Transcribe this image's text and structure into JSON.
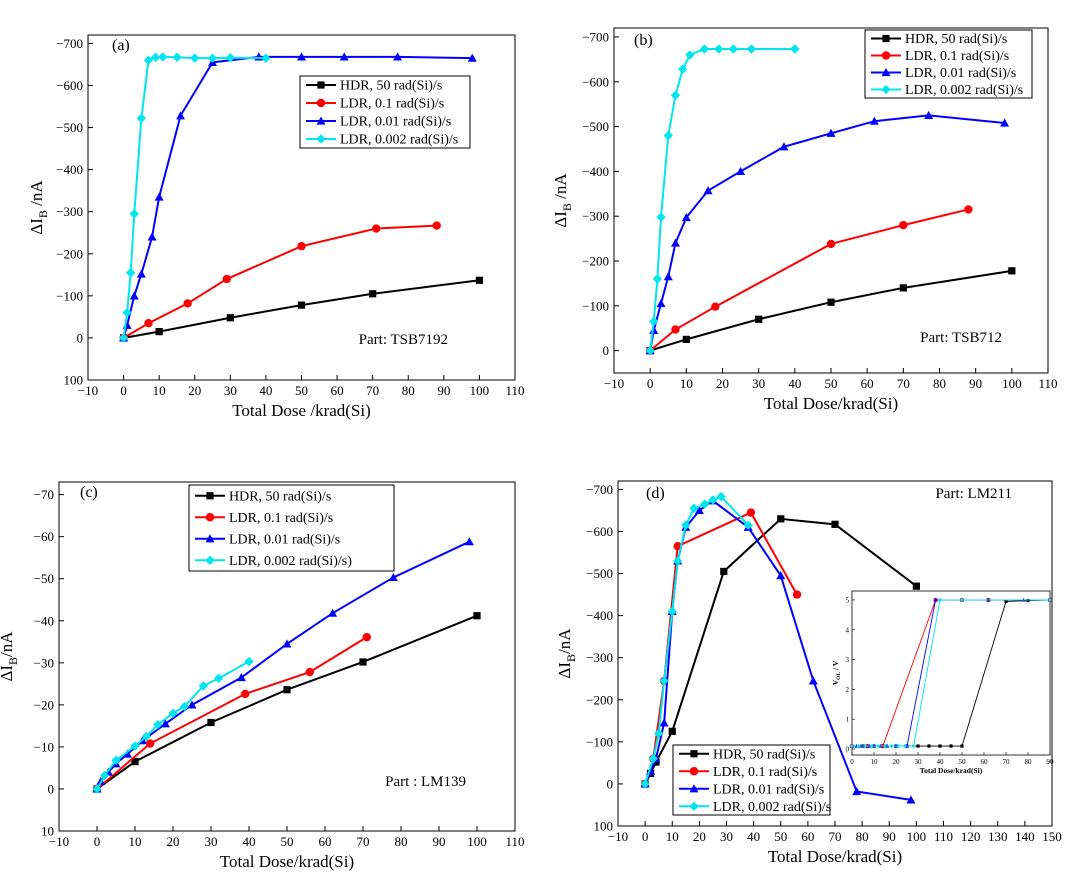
{
  "figure": {
    "colors": {
      "HDR": "#000000",
      "LDR01": "#ff0000",
      "LDR001": "#0000ff",
      "LDR0002": "#00e5ee"
    },
    "markers": {
      "HDR": "square",
      "LDR01": "circle",
      "LDR001": "triangle",
      "LDR0002": "diamond"
    }
  },
  "chart_data": [
    {
      "panel_label": "(a)",
      "type": "line",
      "part_label": "Part: TSB7192",
      "xlabel": "Total Dose /krad(Si)",
      "ylabel_pre": "ΔI",
      "ylabel_sub": "B",
      "ylabel_post": " /nA",
      "xlim": [
        -10,
        110
      ],
      "ylim": [
        100,
        -720
      ],
      "xticks": [
        -10,
        0,
        10,
        20,
        30,
        40,
        50,
        60,
        70,
        80,
        90,
        100,
        110
      ],
      "xtick_labels": [
        "−10",
        "0",
        "10",
        "20",
        "30",
        "40",
        "50",
        "60",
        "70",
        "80",
        "90",
        "100",
        "110"
      ],
      "yticks": [
        100,
        0,
        -100,
        -200,
        -300,
        -400,
        -500,
        -600,
        -700
      ],
      "ytick_labels": [
        "100",
        "0",
        "−100",
        "−200",
        "−300",
        "−400",
        "−500",
        "−600",
        "−700"
      ],
      "legend_position": "center-right",
      "series": [
        {
          "name": "HDR, 50 rad(Si)/s",
          "key": "HDR",
          "x": [
            0,
            10,
            30,
            50,
            70,
            100
          ],
          "y": [
            0,
            -15,
            -48,
            -78,
            -105,
            -137
          ]
        },
        {
          "name": "LDR, 0.1 rad(Si)/s",
          "key": "LDR01",
          "x": [
            0,
            7,
            18,
            29,
            50,
            71,
            88
          ],
          "y": [
            0,
            -35,
            -82,
            -140,
            -218,
            -260,
            -267
          ]
        },
        {
          "name": "LDR, 0.01 rad(Si)/s",
          "key": "LDR001",
          "x": [
            0,
            1,
            3,
            5,
            8,
            10,
            16,
            25,
            38,
            50,
            62,
            77,
            98
          ],
          "y": [
            0,
            -30,
            -100,
            -152,
            -240,
            -335,
            -528,
            -655,
            -668,
            -668,
            -668,
            -668,
            -665
          ]
        },
        {
          "name": "LDR, 0.002 rad(Si)/s",
          "key": "LDR0002",
          "x": [
            0,
            1,
            2,
            3,
            5,
            7,
            9,
            11,
            15,
            20,
            25,
            30,
            40
          ],
          "y": [
            0,
            -60,
            -155,
            -295,
            -522,
            -660,
            -667,
            -668,
            -667,
            -665,
            -665,
            -666,
            -665
          ]
        }
      ]
    },
    {
      "panel_label": "(b)",
      "type": "line",
      "part_label": "Part: TSB712",
      "xlabel": "Total Dose/krad(Si)",
      "ylabel_pre": "ΔI",
      "ylabel_sub": "B",
      "ylabel_post": " /nA",
      "xlim": [
        -10,
        110
      ],
      "ylim": [
        50,
        -720
      ],
      "xticks": [
        -10,
        0,
        10,
        20,
        30,
        40,
        50,
        60,
        70,
        80,
        90,
        100,
        110
      ],
      "xtick_labels": [
        "−10",
        "0",
        "10",
        "20",
        "30",
        "40",
        "50",
        "60",
        "70",
        "80",
        "90",
        "100",
        "110"
      ],
      "yticks": [
        0,
        -100,
        -200,
        -300,
        -400,
        -500,
        -600,
        -700
      ],
      "ytick_labels": [
        "0",
        "−100",
        "−200",
        "−300",
        "−400",
        "−500",
        "−600",
        "−700"
      ],
      "legend_position": "top-right",
      "series": [
        {
          "name": "HDR, 50 rad(Si)/s",
          "key": "HDR",
          "x": [
            0,
            10,
            30,
            50,
            70,
            100
          ],
          "y": [
            0,
            -25,
            -70,
            -108,
            -140,
            -178
          ]
        },
        {
          "name": "LDR, 0.1 rad(Si)/s",
          "key": "LDR01",
          "x": [
            0,
            7,
            18,
            50,
            70,
            88
          ],
          "y": [
            0,
            -47,
            -98,
            -238,
            -280,
            -315
          ]
        },
        {
          "name": "LDR, 0.01 rad(Si)/s",
          "key": "LDR001",
          "x": [
            0,
            1,
            3,
            5,
            7,
            10,
            16,
            25,
            37,
            50,
            62,
            77,
            98
          ],
          "y": [
            0,
            -45,
            -105,
            -165,
            -240,
            -297,
            -357,
            -400,
            -455,
            -485,
            -512,
            -525,
            -508
          ]
        },
        {
          "name": "LDR, 0.002 rad(Si)/s",
          "key": "LDR0002",
          "x": [
            0,
            1,
            2,
            3,
            5,
            7,
            9,
            11,
            15,
            19,
            23,
            28,
            40
          ],
          "y": [
            0,
            -65,
            -160,
            -298,
            -480,
            -570,
            -628,
            -660,
            -673,
            -673,
            -673,
            -673,
            -673
          ]
        }
      ]
    },
    {
      "panel_label": "(c)",
      "type": "line",
      "part_label": "Part : LM139",
      "xlabel": "Total Dose/krad(Si)",
      "ylabel_pre": "ΔI",
      "ylabel_sub": "B",
      "ylabel_post": "/nA",
      "xlim": [
        -10,
        110
      ],
      "ylim": [
        10,
        -73
      ],
      "xticks": [
        -10,
        0,
        10,
        20,
        30,
        40,
        50,
        60,
        70,
        80,
        90,
        100,
        110
      ],
      "xtick_labels": [
        "−10",
        "0",
        "10",
        "20",
        "30",
        "40",
        "50",
        "60",
        "70",
        "80",
        "90",
        "100",
        "110"
      ],
      "yticks": [
        10,
        0,
        -10,
        -20,
        -30,
        -40,
        -50,
        -60,
        -70
      ],
      "ytick_labels": [
        "10",
        "0",
        "−10",
        "−20",
        "−30",
        "−40",
        "−50",
        "−60",
        "−70"
      ],
      "legend_position": "top-center",
      "series": [
        {
          "name": "HDR, 50 rad(Si)/s",
          "key": "HDR",
          "x": [
            0,
            10,
            30,
            50,
            70,
            100
          ],
          "y": [
            0,
            -6.5,
            -15.8,
            -23.6,
            -30.2,
            -41.2
          ]
        },
        {
          "name": "LDR, 0.1 rad(Si)/s",
          "key": "LDR01",
          "x": [
            0,
            14,
            39,
            56,
            71
          ],
          "y": [
            0,
            -10.8,
            -22.6,
            -27.8,
            -36.1
          ]
        },
        {
          "name": "LDR, 0.01 rad(Si)/s",
          "key": "LDR001",
          "x": [
            0,
            1,
            3,
            5,
            8,
            12,
            18,
            25,
            38,
            50,
            62,
            78,
            98
          ],
          "y": [
            0,
            -1.8,
            -4,
            -6,
            -8.3,
            -11.5,
            -15.5,
            -20,
            -26.5,
            -34.5,
            -41.8,
            -50.3,
            -58.8
          ]
        },
        {
          "name": "LDR, 0.002 rad(Si)/s)",
          "key": "LDR0002",
          "x": [
            0,
            2,
            5,
            10,
            13,
            16,
            20,
            23,
            28,
            32,
            40
          ],
          "y": [
            0,
            -3.2,
            -6.8,
            -10.2,
            -12.5,
            -15.3,
            -18,
            -19.6,
            -24.5,
            -26.3,
            -30.3
          ]
        }
      ]
    },
    {
      "panel_label": "(d)",
      "type": "line",
      "part_label": "Part: LM211",
      "xlabel": "Total Dose/krad(Si)",
      "ylabel_pre": "ΔI",
      "ylabel_sub": "B",
      "ylabel_post": "/nA",
      "xlim": [
        -10,
        150
      ],
      "ylim": [
        100,
        -720
      ],
      "xticks": [
        -10,
        0,
        10,
        20,
        30,
        40,
        50,
        60,
        70,
        80,
        90,
        100,
        110,
        120,
        130,
        140,
        150
      ],
      "xtick_labels": [
        "−10",
        "0",
        "10",
        "20",
        "30",
        "40",
        "50",
        "60",
        "70",
        "80",
        "90",
        "100",
        "110",
        "120",
        "130",
        "140",
        "150"
      ],
      "yticks": [
        100,
        0,
        -100,
        -200,
        -300,
        -400,
        -500,
        -600,
        -700
      ],
      "ytick_labels": [
        "100",
        "0",
        "−100",
        "−200",
        "−300",
        "−400",
        "−500",
        "−600",
        "−700"
      ],
      "legend_position": "bottom-left",
      "series": [
        {
          "name": "HDR, 50 rad(Si)/s",
          "key": "HDR",
          "x": [
            0,
            2,
            4,
            10,
            29,
            50,
            70,
            100
          ],
          "y": [
            0,
            -25,
            -52,
            -125,
            -505,
            -630,
            -617,
            -470
          ]
        },
        {
          "name": "LDR, 0.1 rad(Si)/s",
          "key": "LDR01",
          "x": [
            0,
            3,
            7,
            12,
            39,
            56
          ],
          "y": [
            0,
            -60,
            -245,
            -565,
            -645,
            -450
          ]
        },
        {
          "name": "LDR, 0.01 rad(Si)/s",
          "key": "LDR001",
          "x": [
            0,
            2,
            4,
            7,
            10,
            12,
            15,
            20,
            25,
            38,
            50,
            62,
            78,
            98
          ],
          "y": [
            0,
            -30,
            -60,
            -145,
            -410,
            -530,
            -610,
            -650,
            -673,
            -610,
            -495,
            -245,
            18,
            38
          ]
        },
        {
          "name": "LDR, 0.002 rad(Si)/s",
          "key": "LDR0002",
          "x": [
            0,
            3,
            5,
            7,
            10,
            12,
            15,
            18,
            22,
            25,
            28,
            38
          ],
          "y": [
            0,
            -60,
            -120,
            -245,
            -410,
            -530,
            -615,
            -655,
            -665,
            -675,
            -683,
            -615
          ]
        }
      ],
      "inset": {
        "type": "line",
        "xlabel": "Total Dose/krad(Si)",
        "ylabel": "V",
        "ylabel_sub": "OL",
        "ylabel_unit": " / V",
        "xlim": [
          0,
          90
        ],
        "ylim": [
          -0.2,
          5.3
        ],
        "xticks": [
          0,
          10,
          20,
          30,
          40,
          50,
          60,
          70,
          80,
          90
        ],
        "xtick_labels": [
          "0",
          "10",
          "20",
          "30",
          "40",
          "50",
          "60",
          "70",
          "80",
          "90"
        ],
        "yticks": [
          0,
          1,
          2,
          3,
          4,
          5
        ],
        "ytick_labels": [
          "0",
          "1",
          "2",
          "3",
          "4",
          "5"
        ],
        "series": [
          {
            "key": "HDR",
            "x": [
              0,
              5,
              10,
              15,
              20,
              25,
              30,
              35,
              40,
              45,
              50,
              70,
              80,
              90
            ],
            "y": [
              0.1,
              0.1,
              0.1,
              0.1,
              0.1,
              0.1,
              0.1,
              0.1,
              0.1,
              0.1,
              0.1,
              4.95,
              4.98,
              5
            ]
          },
          {
            "key": "LDR01",
            "x": [
              0,
              7,
              14,
              38,
              50,
              62,
              90
            ],
            "y": [
              0.1,
              0.1,
              0.1,
              5,
              5,
              5,
              5
            ]
          },
          {
            "key": "LDR001",
            "x": [
              0,
              2,
              4,
              6,
              8,
              10,
              13,
              16,
              20,
              25,
              38,
              50,
              62,
              78,
              90
            ],
            "y": [
              0.1,
              0.1,
              0.1,
              0.1,
              0.1,
              0.1,
              0.1,
              0.1,
              0.1,
              0.1,
              5,
              5,
              5,
              5,
              5
            ]
          },
          {
            "key": "LDR0002",
            "x": [
              0,
              3,
              6,
              9,
              12,
              15,
              18,
              21,
              24,
              28,
              40,
              50,
              90
            ],
            "y": [
              0.1,
              0.1,
              0.1,
              0.1,
              0.1,
              0.1,
              0.1,
              0.1,
              0.1,
              0.1,
              5,
              5,
              5
            ]
          }
        ]
      }
    }
  ]
}
